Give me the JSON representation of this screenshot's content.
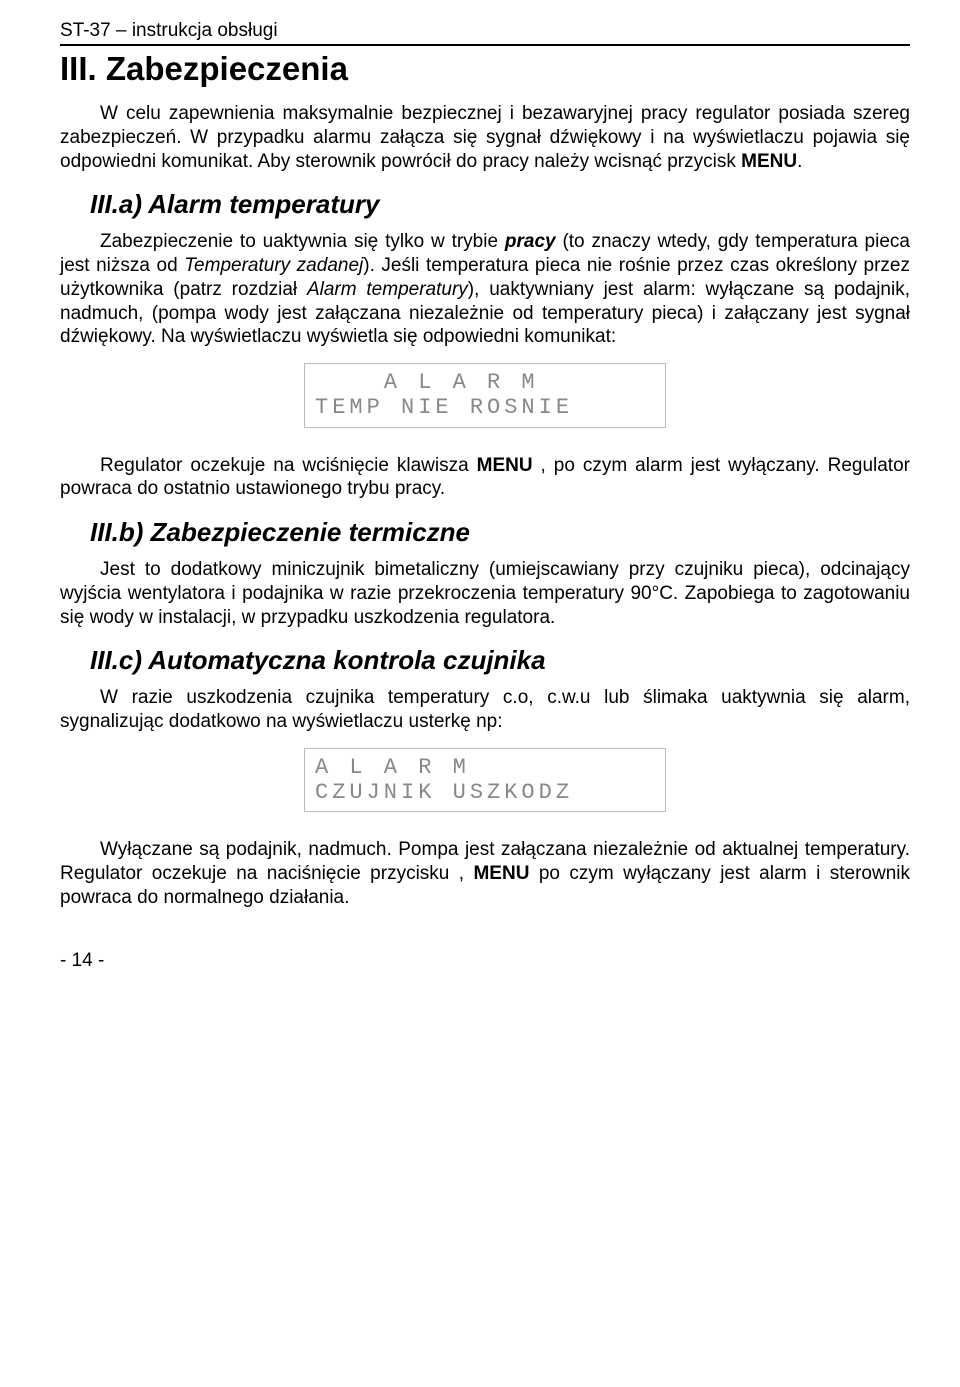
{
  "header": "ST-37 – instrukcja obsługi",
  "h1": "III. Zabezpieczenia",
  "p1_a": "W celu zapewnienia maksymalnie bezpiecznej i bezawaryjnej pracy regulator posiada szereg zabezpieczeń. W przypadku alarmu załącza się sygnał dźwiękowy i na wyświetlaczu pojawia się odpowiedni komunikat. Aby sterownik powrócił do pracy należy wcisnąć przycisk ",
  "p1_b": "MENU",
  "p1_c": ".",
  "h2a": "III.a) Alarm temperatury",
  "p2_a": "Zabezpieczenie to uaktywnia się tylko w trybie ",
  "p2_b": "pracy",
  "p2_c": " (to znaczy wtedy, gdy temperatura pieca jest niższa od ",
  "p2_d": "Temperatury zadanej",
  "p2_e": "). Jeśli temperatura pieca nie rośnie przez czas określony przez użytkownika (patrz rozdział ",
  "p2_f": "Alarm temperatury",
  "p2_g": "), uaktywniany jest alarm: wyłączane są podajnik, nadmuch, (pompa wody jest załączana niezależnie od temperatury pieca) i załączany jest sygnał dźwiękowy. Na wyświetlaczu wyświetla się odpowiedni komunikat:",
  "lcd1": "    A L A R M\nTEMP NIE ROSNIE",
  "p3_a": "Regulator oczekuje na wciśnięcie klawisza ",
  "p3_b": "MENU",
  "p3_c": " , po czym alarm jest wyłączany. Regulator powraca do ostatnio ustawionego trybu pracy.",
  "h2b": "III.b) Zabezpieczenie termiczne",
  "p4": "Jest to dodatkowy miniczujnik bimetaliczny (umiejscawiany przy czujniku pieca), odcinający wyjścia wentylatora i podajnika w razie przekroczenia temperatury 90°C. Zapobiega to zagotowaniu się wody w instalacji, w przypadku uszkodzenia regulatora.",
  "h2c": "III.c) Automatyczna kontrola czujnika",
  "p5": "W razie uszkodzenia czujnika temperatury c.o, c.w.u lub ślimaka uaktywnia się alarm, sygnalizując dodatkowo na wyświetlaczu usterkę np:",
  "lcd2": "A L A R M\nCZUJNIK USZKODZ",
  "p6_a": "Wyłączane są podajnik, nadmuch. Pompa jest załączana niezależnie od aktualnej temperatury. Regulator oczekuje na naciśnięcie przycisku , ",
  "p6_b": "MENU",
  "p6_c": " po czym wyłączany jest alarm i sterownik powraca do normalnego działania.",
  "footer": "- 14 -"
}
